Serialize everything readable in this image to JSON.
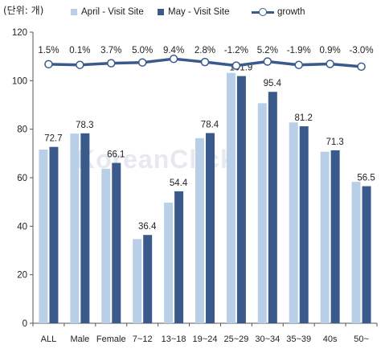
{
  "unit_label": "(단위: 개)",
  "watermark": "KoreanClick",
  "colors": {
    "april": "#b9cfe8",
    "may": "#3a5a8c",
    "growth": "#3a5a8c",
    "axis": "#555555"
  },
  "chart_data": {
    "type": "bar",
    "categories": [
      "ALL",
      "Male",
      "Female",
      "7~12",
      "13~18",
      "19~24",
      "25~29",
      "30~34",
      "35~39",
      "40s",
      "50~"
    ],
    "series": [
      {
        "name": "April - Visit Site",
        "values": [
          71.6,
          78.2,
          63.7,
          34.7,
          49.7,
          76.3,
          103.2,
          90.7,
          82.8,
          70.7,
          58.3
        ]
      },
      {
        "name": "May - Visit Site",
        "values": [
          72.7,
          78.3,
          66.1,
          36.4,
          54.4,
          78.4,
          101.9,
          95.4,
          81.2,
          71.3,
          56.5
        ]
      },
      {
        "name": "growth",
        "type": "line",
        "values": [
          106.8,
          106.5,
          107.2,
          107.5,
          109.0,
          107.7,
          106.2,
          107.9,
          106.5,
          106.9,
          105.8
        ]
      }
    ],
    "may_data_labels": [
      "72.7",
      "78.3",
      "66.1",
      "36.4",
      "54.4",
      "78.4",
      "101.9",
      "95.4",
      "81.2",
      "71.3",
      "56.5"
    ],
    "growth_labels": [
      "1.5%",
      "0.1%",
      "3.7%",
      "5.0%",
      "9.4%",
      "2.8%",
      "-1.2%",
      "5.2%",
      "-1.9%",
      "0.9%",
      "-3.0%"
    ],
    "ylim": [
      0,
      120
    ],
    "yticks": [
      0,
      20,
      40,
      60,
      80,
      100,
      120
    ],
    "legend_position": "top",
    "grid": false
  }
}
